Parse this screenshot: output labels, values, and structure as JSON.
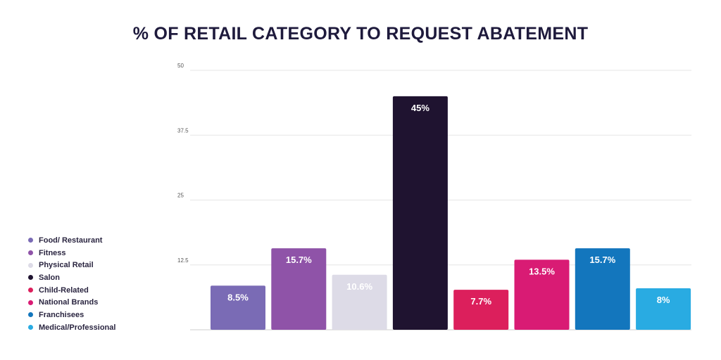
{
  "chart_data": {
    "type": "bar",
    "title": "% OF RETAIL CATEGORY TO REQUEST ABATEMENT",
    "categories": [
      "Food/ Restaurant",
      "Fitness",
      "Physical Retail",
      "Salon",
      "Child-Related",
      "National Brands",
      "Franchisees",
      "Medical/Professional"
    ],
    "values": [
      8.5,
      15.7,
      10.6,
      45,
      7.7,
      13.5,
      15.7,
      8
    ],
    "value_labels": [
      "8.5%",
      "15.7%",
      "10.6%",
      "45%",
      "7.7%",
      "13.5%",
      "15.7%",
      "8%"
    ],
    "colors": [
      "#7a6bb5",
      "#8f53a8",
      "#dddbe7",
      "#1f1330",
      "#dc1f5c",
      "#d91b74",
      "#1376bd",
      "#29abe2"
    ],
    "yticks": [
      0,
      12.5,
      25,
      37.5,
      50
    ],
    "ytick_labels": [
      "",
      "12.5",
      "25",
      "37.5",
      "50"
    ],
    "ylim": [
      0,
      50
    ],
    "grid": true,
    "legend_position": "left"
  }
}
